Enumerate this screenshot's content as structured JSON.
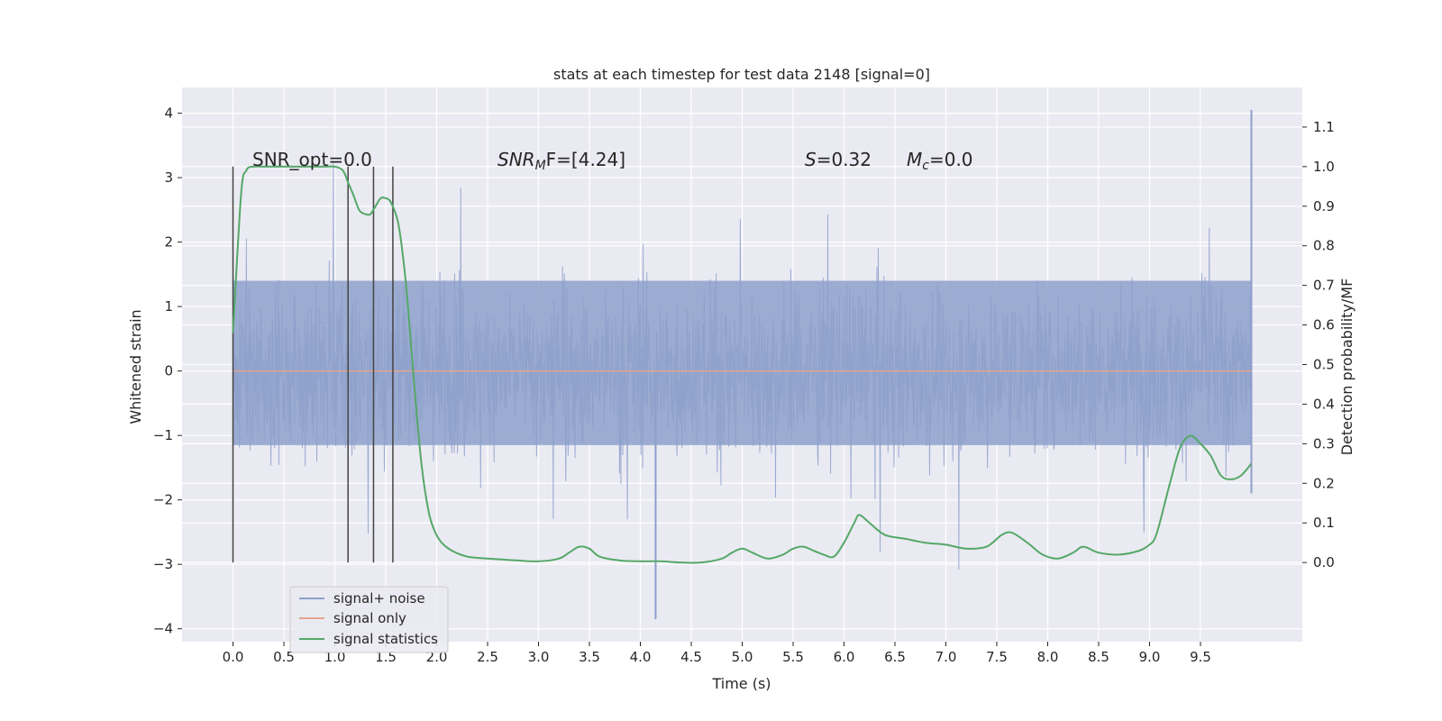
{
  "chart_data": {
    "type": "line",
    "title": "stats at each timestep for test data 2148 [signal=0]",
    "xlabel": "Time (s)",
    "ylabel": "Whitened strain",
    "ylabel_right": "Detection probability/MF",
    "xlim": [
      -0.5,
      10.5
    ],
    "ylim": [
      -4.2,
      4.4
    ],
    "ylim_right": [
      -0.2,
      1.2
    ],
    "x_ticks": [
      "0.0",
      "0.5",
      "1.0",
      "1.5",
      "2.0",
      "2.5",
      "3.0",
      "3.5",
      "4.0",
      "4.5",
      "5.0",
      "5.5",
      "6.0",
      "6.5",
      "7.0",
      "7.5",
      "8.0",
      "8.5",
      "9.0",
      "9.5"
    ],
    "y_ticks": [
      "−4",
      "−3",
      "−2",
      "−1",
      "0",
      "1",
      "2",
      "3",
      "4"
    ],
    "y_ticks_right": [
      "0.0",
      "0.1",
      "0.2",
      "0.3",
      "0.4",
      "0.5",
      "0.6",
      "0.7",
      "0.8",
      "0.9",
      "1.0",
      "1.1"
    ],
    "grid": true,
    "legend_position": "lower-left",
    "annotations": {
      "snr_opt": "SNR_opt=0.0",
      "snr_mf_main": "SNR",
      "snr_mf_sub": "M",
      "snr_mf_rest": "F=[4.24]",
      "s_var": "S",
      "s_val": "=0.32",
      "mc_var": "M",
      "mc_sub": "c",
      "mc_val": "=0.0"
    },
    "vertical_markers": [
      0.0,
      1.13,
      1.38,
      1.57
    ],
    "series": [
      {
        "name": "signal+ noise",
        "color": "#8da0cb",
        "style": "noise",
        "x_range": [
          0.0,
          10.0
        ],
        "envelope_up": 1.4,
        "envelope_down": -1.15,
        "spike_max": 4.05,
        "spike_min": -3.85
      },
      {
        "name": "signal only",
        "color": "#e5a48b",
        "x": [
          0.0,
          10.0
        ],
        "y": [
          0.0,
          0.0
        ]
      },
      {
        "name": "signal statistics",
        "color": "#55a868",
        "axis": "right",
        "x": [
          0.0,
          0.08,
          0.13,
          0.2,
          0.3,
          0.4,
          0.5,
          0.6,
          0.7,
          0.8,
          0.9,
          1.0,
          1.08,
          1.13,
          1.18,
          1.24,
          1.3,
          1.35,
          1.4,
          1.45,
          1.5,
          1.55,
          1.62,
          1.68,
          1.72,
          1.78,
          1.85,
          1.92,
          1.98,
          2.05,
          2.15,
          2.3,
          2.5,
          2.8,
          3.0,
          3.2,
          3.3,
          3.4,
          3.5,
          3.6,
          3.8,
          4.0,
          4.2,
          4.4,
          4.6,
          4.8,
          4.9,
          5.0,
          5.1,
          5.25,
          5.4,
          5.5,
          5.6,
          5.7,
          5.8,
          5.9,
          6.0,
          6.1,
          6.15,
          6.25,
          6.4,
          6.6,
          6.8,
          7.0,
          7.2,
          7.4,
          7.55,
          7.65,
          7.8,
          7.95,
          8.1,
          8.25,
          8.35,
          8.5,
          8.7,
          8.9,
          9.0,
          9.05,
          9.1,
          9.2,
          9.3,
          9.4,
          9.5,
          9.6,
          9.7,
          9.8,
          9.9,
          10.0
        ],
        "y": [
          0.58,
          0.93,
          0.99,
          1.0,
          1.0,
          1.0,
          1.0,
          1.0,
          1.0,
          1.0,
          1.0,
          1.0,
          0.99,
          0.96,
          0.93,
          0.89,
          0.88,
          0.88,
          0.9,
          0.92,
          0.92,
          0.91,
          0.86,
          0.75,
          0.64,
          0.45,
          0.25,
          0.13,
          0.08,
          0.05,
          0.03,
          0.015,
          0.01,
          0.005,
          0.003,
          0.01,
          0.025,
          0.04,
          0.035,
          0.015,
          0.005,
          0.003,
          0.003,
          0.0,
          0.0,
          0.01,
          0.025,
          0.035,
          0.025,
          0.01,
          0.02,
          0.035,
          0.04,
          0.03,
          0.02,
          0.015,
          0.05,
          0.1,
          0.12,
          0.1,
          0.07,
          0.06,
          0.05,
          0.045,
          0.035,
          0.04,
          0.07,
          0.075,
          0.05,
          0.02,
          0.01,
          0.025,
          0.04,
          0.025,
          0.02,
          0.03,
          0.045,
          0.06,
          0.1,
          0.2,
          0.29,
          0.32,
          0.3,
          0.27,
          0.22,
          0.21,
          0.22,
          0.25
        ]
      }
    ]
  }
}
